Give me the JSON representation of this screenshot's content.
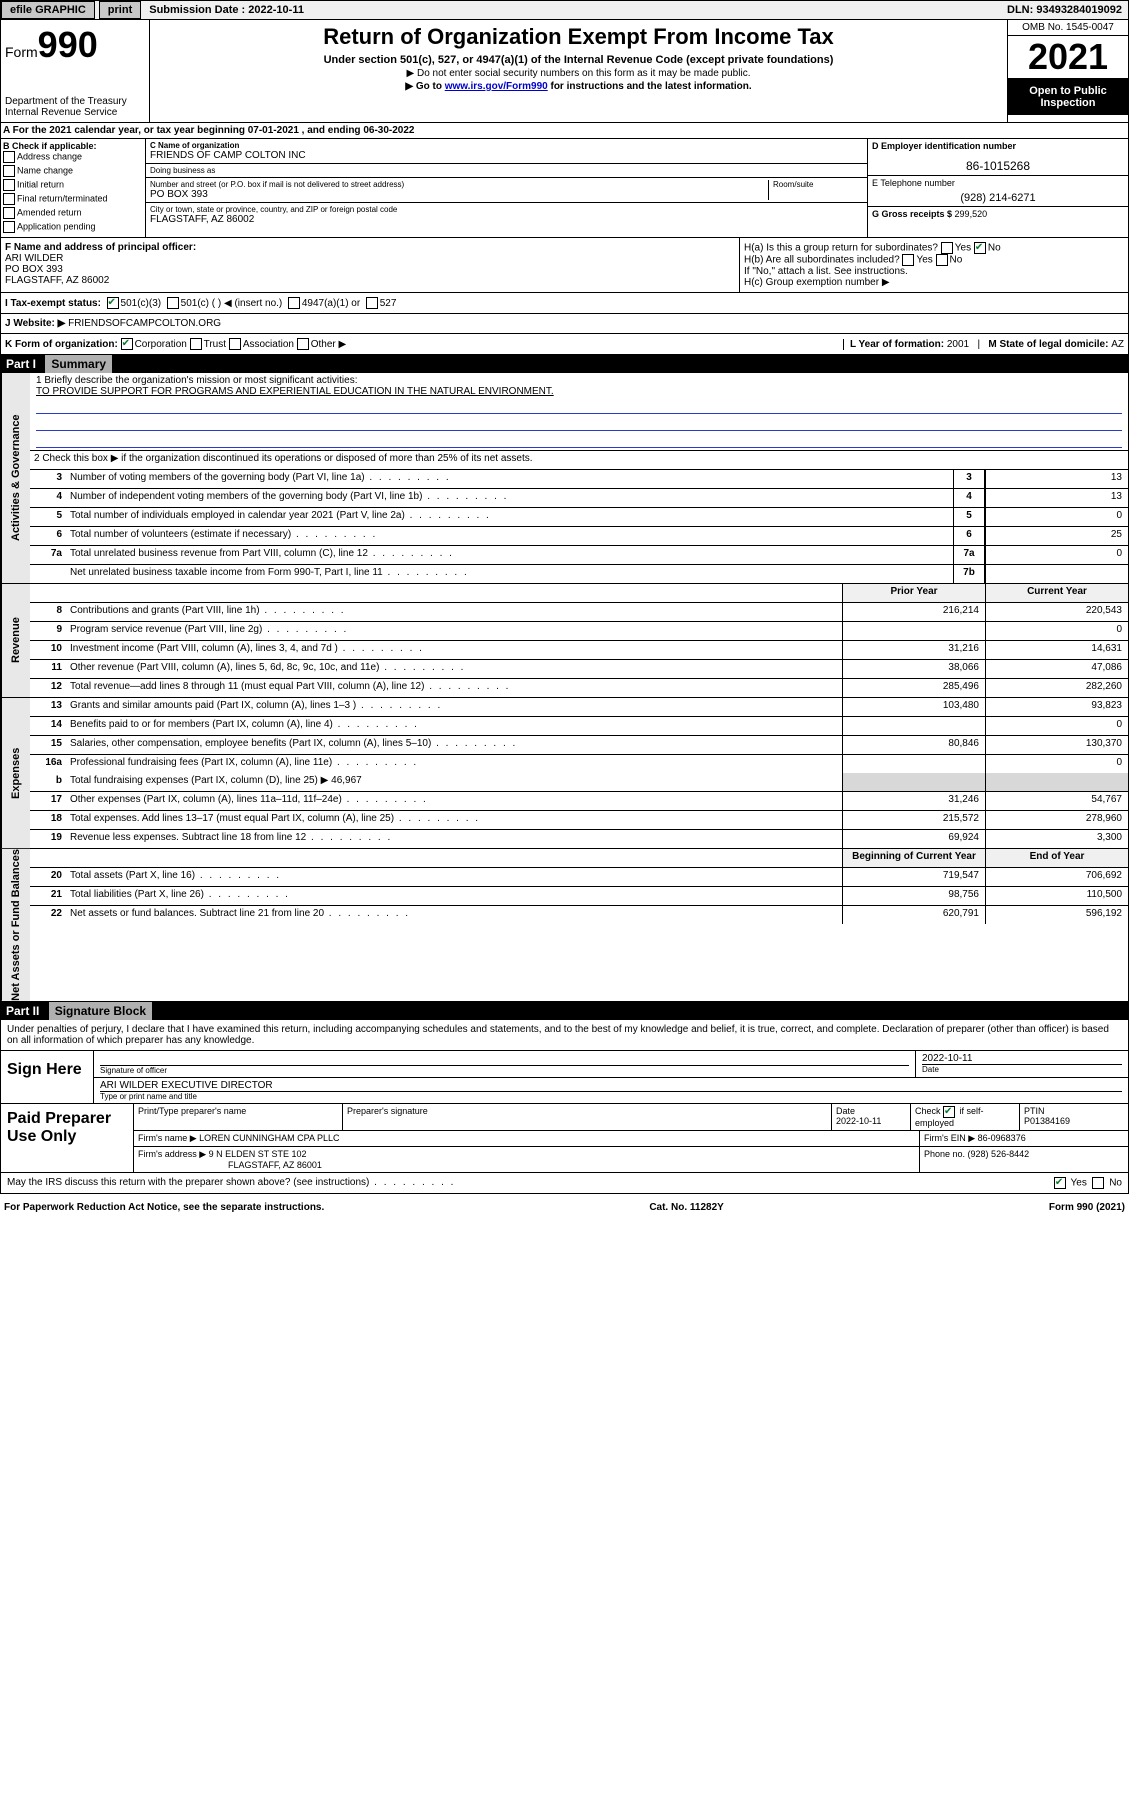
{
  "topbar": {
    "efile": "efile GRAPHIC",
    "print": "print",
    "sub_label": "Submission Date : ",
    "sub_date": "2022-10-11",
    "dln_label": "DLN: ",
    "dln": "93493284019092"
  },
  "header": {
    "form_prefix": "Form",
    "form_number": "990",
    "dept": "Department of the Treasury\nInternal Revenue Service",
    "title": "Return of Organization Exempt From Income Tax",
    "sub": "Under section 501(c), 527, or 4947(a)(1) of the Internal Revenue Code (except private foundations)",
    "note1": "▶ Do not enter social security numbers on this form as it may be made public.",
    "note2_pre": "▶ Go to ",
    "note2_link": "www.irs.gov/Form990",
    "note2_post": " for instructions and the latest information.",
    "omb": "OMB No. 1545-0047",
    "year": "2021",
    "open": "Open to Public Inspection"
  },
  "sectionA": "A For the 2021 calendar year, or tax year beginning 07-01-2021   , and ending 06-30-2022",
  "colB": {
    "title": "B Check if applicable:",
    "items": [
      "Address change",
      "Name change",
      "Initial return",
      "Final return/terminated",
      "Amended return",
      "Application pending"
    ]
  },
  "colC": {
    "name_label": "C Name of organization",
    "name": "FRIENDS OF CAMP COLTON INC",
    "dba_label": "Doing business as",
    "dba": "",
    "addr_label": "Number and street (or P.O. box if mail is not delivered to street address)",
    "room_label": "Room/suite",
    "addr": "PO BOX 393",
    "city_label": "City or town, state or province, country, and ZIP or foreign postal code",
    "city": "FLAGSTAFF, AZ  86002"
  },
  "colD": {
    "ein_label": "D Employer identification number",
    "ein": "86-1015268"
  },
  "colE": {
    "tel_label": "E Telephone number",
    "tel": "(928) 214-6271",
    "gross_label": "G Gross receipts $ ",
    "gross": "299,520"
  },
  "rowF": {
    "label": "F Name and address of principal officer:",
    "name": "ARI WILDER",
    "addr1": "PO BOX 393",
    "addr2": "FLAGSTAFF, AZ  86002"
  },
  "rowH": {
    "ha": "H(a)  Is this a group return for subordinates?",
    "hb": "H(b)  Are all subordinates included?",
    "hb_note": "If \"No,\" attach a list. See instructions.",
    "hc": "H(c)  Group exemption number ▶"
  },
  "rowI": {
    "label": "I   Tax-exempt status:",
    "opt1": "501(c)(3)",
    "opt2": "501(c) (  ) ◀ (insert no.)",
    "opt3": "4947(a)(1) or",
    "opt4": "527"
  },
  "rowJ": {
    "label": "J   Website: ▶",
    "val": "FRIENDSOFCAMPCOLTON.ORG"
  },
  "rowK": {
    "label": "K Form of organization:",
    "opts": [
      "Corporation",
      "Trust",
      "Association",
      "Other ▶"
    ],
    "l_label": "L Year of formation: ",
    "l_val": "2001",
    "m_label": "M State of legal domicile: ",
    "m_val": "AZ"
  },
  "part1": {
    "label": "Part I",
    "title": "Summary"
  },
  "governance": {
    "side": "Activities & Governance",
    "r1_label": "1   Briefly describe the organization's mission or most significant activities:",
    "r1_val": "TO PROVIDE SUPPORT FOR PROGRAMS AND EXPERIENTIAL EDUCATION IN THE NATURAL ENVIRONMENT.",
    "r2": "2   Check this box ▶       if the organization discontinued its operations or disposed of more than 25% of its net assets.",
    "rows": [
      {
        "n": "3",
        "d": "Number of voting members of the governing body (Part VI, line 1a)",
        "box": "3",
        "v": "13"
      },
      {
        "n": "4",
        "d": "Number of independent voting members of the governing body (Part VI, line 1b)",
        "box": "4",
        "v": "13"
      },
      {
        "n": "5",
        "d": "Total number of individuals employed in calendar year 2021 (Part V, line 2a)",
        "box": "5",
        "v": "0"
      },
      {
        "n": "6",
        "d": "Total number of volunteers (estimate if necessary)",
        "box": "6",
        "v": "25"
      },
      {
        "n": "7a",
        "d": "Total unrelated business revenue from Part VIII, column (C), line 12",
        "box": "7a",
        "v": "0"
      },
      {
        "n": "",
        "d": "Net unrelated business taxable income from Form 990-T, Part I, line 11",
        "box": "7b",
        "v": ""
      }
    ]
  },
  "revenue": {
    "side": "Revenue",
    "head_prior": "Prior Year",
    "head_current": "Current Year",
    "rows": [
      {
        "n": "8",
        "d": "Contributions and grants (Part VIII, line 1h)",
        "p": "216,214",
        "c": "220,543"
      },
      {
        "n": "9",
        "d": "Program service revenue (Part VIII, line 2g)",
        "p": "",
        "c": "0"
      },
      {
        "n": "10",
        "d": "Investment income (Part VIII, column (A), lines 3, 4, and 7d )",
        "p": "31,216",
        "c": "14,631"
      },
      {
        "n": "11",
        "d": "Other revenue (Part VIII, column (A), lines 5, 6d, 8c, 9c, 10c, and 11e)",
        "p": "38,066",
        "c": "47,086"
      },
      {
        "n": "12",
        "d": "Total revenue—add lines 8 through 11 (must equal Part VIII, column (A), line 12)",
        "p": "285,496",
        "c": "282,260"
      }
    ]
  },
  "expenses": {
    "side": "Expenses",
    "rows": [
      {
        "n": "13",
        "d": "Grants and similar amounts paid (Part IX, column (A), lines 1–3 )",
        "p": "103,480",
        "c": "93,823"
      },
      {
        "n": "14",
        "d": "Benefits paid to or for members (Part IX, column (A), line 4)",
        "p": "",
        "c": "0"
      },
      {
        "n": "15",
        "d": "Salaries, other compensation, employee benefits (Part IX, column (A), lines 5–10)",
        "p": "80,846",
        "c": "130,370"
      },
      {
        "n": "16a",
        "d": "Professional fundraising fees (Part IX, column (A), line 11e)",
        "p": "",
        "c": "0"
      }
    ],
    "r16b_n": "b",
    "r16b_d": "Total fundraising expenses (Part IX, column (D), line 25) ▶",
    "r16b_v": "46,967",
    "rows2": [
      {
        "n": "17",
        "d": "Other expenses (Part IX, column (A), lines 11a–11d, 11f–24e)",
        "p": "31,246",
        "c": "54,767"
      },
      {
        "n": "18",
        "d": "Total expenses. Add lines 13–17 (must equal Part IX, column (A), line 25)",
        "p": "215,572",
        "c": "278,960"
      },
      {
        "n": "19",
        "d": "Revenue less expenses. Subtract line 18 from line 12",
        "p": "69,924",
        "c": "3,300"
      }
    ]
  },
  "netassets": {
    "side": "Net Assets or Fund Balances",
    "head_begin": "Beginning of Current Year",
    "head_end": "End of Year",
    "rows": [
      {
        "n": "20",
        "d": "Total assets (Part X, line 16)",
        "p": "719,547",
        "c": "706,692"
      },
      {
        "n": "21",
        "d": "Total liabilities (Part X, line 26)",
        "p": "98,756",
        "c": "110,500"
      },
      {
        "n": "22",
        "d": "Net assets or fund balances. Subtract line 21 from line 20",
        "p": "620,791",
        "c": "596,192"
      }
    ]
  },
  "part2": {
    "label": "Part II",
    "title": "Signature Block"
  },
  "sig": {
    "declaration": "Under penalties of perjury, I declare that I have examined this return, including accompanying schedules and statements, and to the best of my knowledge and belief, it is true, correct, and complete. Declaration of preparer (other than officer) is based on all information of which preparer has any knowledge.",
    "sign_here": "Sign Here",
    "officer_sig": "Signature of officer",
    "date_label": "Date",
    "sig_date": "2022-10-11",
    "officer_name": "ARI WILDER  EXECUTIVE DIRECTOR",
    "name_title_label": "Type or print name and title"
  },
  "prep": {
    "title": "Paid Preparer Use Only",
    "h1": "Print/Type preparer's name",
    "h2": "Preparer's signature",
    "h3": "Date",
    "h3v": "2022-10-11",
    "h4": "Check        if self-employed",
    "h5": "PTIN",
    "h5v": "P01384169",
    "firm_name_label": "Firm's name      ▶",
    "firm_name": "LOREN CUNNINGHAM CPA PLLC",
    "firm_ein_label": "Firm's EIN ▶",
    "firm_ein": "86-0968376",
    "firm_addr_label": "Firm's address ▶",
    "firm_addr": "9 N ELDEN ST STE 102",
    "firm_city": "FLAGSTAFF, AZ  86001",
    "phone_label": "Phone no. ",
    "phone": "(928) 526-8442"
  },
  "discuss": "May the IRS discuss this return with the preparer shown above? (see instructions)",
  "footer": {
    "left": "For Paperwork Reduction Act Notice, see the separate instructions.",
    "mid": "Cat. No. 11282Y",
    "right": "Form 990 (2021)"
  },
  "yesno": {
    "yes": "Yes",
    "no": "No"
  }
}
